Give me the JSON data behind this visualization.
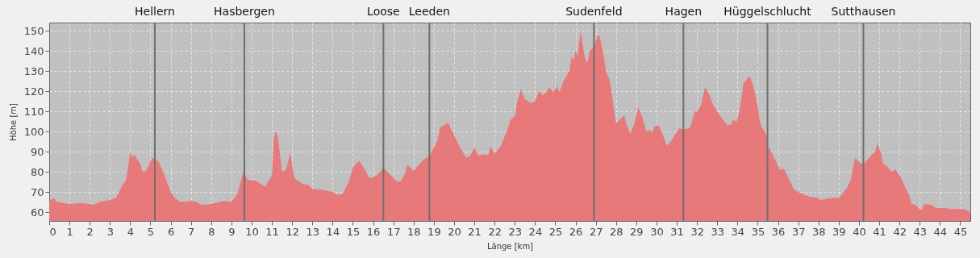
{
  "chart_data": {
    "type": "area",
    "xlabel": "Länge [km]",
    "ylabel": "Höhe [m]",
    "x": [
      0,
      0.2,
      0.4,
      1,
      1.5,
      2,
      2.2,
      2.5,
      3,
      3.3,
      3.6,
      3.8,
      4.0,
      4.1,
      4.2,
      4.5,
      4.6,
      4.8,
      5.0,
      5.1,
      5.4,
      5.7,
      6.0,
      6.2,
      6.5,
      7.0,
      7.3,
      7.5,
      8,
      8.6,
      9,
      9.3,
      9.6,
      9.8,
      10.2,
      10.7,
      10.8,
      11.0,
      11.1,
      11.2,
      11.3,
      11.5,
      11.7,
      11.9,
      12.1,
      12.5,
      12.8,
      13.0,
      13.5,
      14.0,
      14.2,
      14.5,
      14.8,
      15.0,
      15.3,
      15.6,
      15.8,
      16.0,
      16.2,
      16.4,
      16.5,
      16.6,
      16.9,
      17.2,
      17.4,
      17.6,
      17.7,
      18.0,
      18.3,
      18.5,
      18.8,
      19.0,
      19.2,
      19.3,
      19.5,
      19.7,
      20.0,
      20.3,
      20.6,
      20.8,
      21.0,
      21.2,
      21.4,
      21.7,
      21.8,
      22.0,
      22.3,
      22.6,
      22.8,
      23.0,
      23.1,
      23.3,
      23.5,
      23.8,
      24.0,
      24.2,
      24.4,
      24.6,
      24.7,
      24.9,
      25.1,
      25.2,
      25.4,
      25.7,
      25.8,
      25.9,
      26.0,
      26.1,
      26.25,
      26.4,
      26.5,
      26.6,
      26.7,
      26.9,
      27.1,
      27.2,
      27.4,
      27.5,
      27.7,
      28.0,
      28.2,
      28.4,
      28.5,
      28.7,
      28.9,
      29.1,
      29.3,
      29.5,
      29.7,
      29.8,
      29.9,
      30.1,
      30.3,
      30.5,
      30.7,
      30.9,
      31.1,
      31.3,
      31.6,
      31.7,
      31.9,
      32.0,
      32.2,
      32.4,
      32.6,
      32.8,
      33.0,
      33.3,
      33.5,
      33.7,
      33.8,
      33.95,
      34.1,
      34.2,
      34.3,
      34.6,
      34.8,
      35.0,
      35.1,
      35.2,
      35.4,
      35.5,
      35.6,
      35.9,
      36.1,
      36.3,
      36.6,
      36.8,
      37.0,
      37.3,
      37.6,
      38.0,
      38.1,
      38.6,
      39.0,
      39.1,
      39.4,
      39.6,
      39.8,
      40.0,
      40.1,
      40.3,
      40.6,
      40.8,
      40.9,
      41.1,
      41.2,
      41.4,
      41.6,
      41.8,
      42.0,
      42.3,
      42.5,
      42.6,
      42.8,
      43.0,
      43.1,
      43.2,
      43.6,
      43.8,
      44.3,
      44.5,
      45.2,
      45.5
    ],
    "series": [
      {
        "color": "#e8797a",
        "values": [
          65,
          67,
          65,
          64,
          64.5,
          64,
          63.5,
          65,
          66,
          67,
          73,
          76,
          89.5,
          87,
          88.5,
          84,
          80,
          80.5,
          85,
          87,
          85,
          78,
          70,
          67,
          65,
          65.5,
          65,
          63.5,
          64,
          65.5,
          65,
          69,
          80.5,
          76,
          75.5,
          72.5,
          75,
          78,
          97,
          100,
          97,
          80,
          81,
          89.5,
          77,
          74,
          73.5,
          71.5,
          71,
          70,
          68.5,
          69,
          75,
          82,
          85.5,
          81,
          77,
          77,
          78.5,
          80.5,
          82.5,
          81,
          78,
          75,
          75.5,
          80,
          83.5,
          80.5,
          84,
          86,
          88,
          92,
          96,
          102,
          103,
          104.5,
          98,
          92,
          87,
          88,
          92,
          88,
          88.5,
          88.5,
          92.5,
          89,
          92.5,
          100,
          106,
          107.5,
          114,
          121,
          116,
          114,
          115,
          120,
          118,
          120,
          122,
          119.5,
          122.5,
          119.5,
          125,
          130,
          137,
          135.5,
          140,
          137.5,
          150,
          140,
          135,
          134.5,
          140,
          142,
          148,
          147,
          137,
          130,
          125,
          104,
          106,
          108,
          104,
          99,
          103.5,
          112,
          107,
          100,
          100.5,
          99.5,
          102.5,
          103,
          98.5,
          93,
          95,
          98,
          101.5,
          101,
          101.5,
          103,
          110.5,
          109.5,
          113,
          122,
          118.5,
          113,
          110,
          105.5,
          103,
          103.5,
          106,
          104.5,
          110,
          117,
          124,
          127.5,
          122,
          112,
          105,
          102,
          99,
          92,
          91.5,
          85,
          81,
          81.5,
          75,
          71,
          70,
          68.5,
          67.5,
          67,
          66,
          67,
          67,
          68,
          72,
          76,
          87,
          85,
          84,
          84.5,
          88,
          90,
          94,
          89,
          84,
          82.5,
          80,
          81,
          78.5,
          72,
          68,
          64,
          63.5,
          61.5,
          61,
          64,
          63.5,
          62,
          62,
          61.5,
          61.5,
          60
        ]
      }
    ],
    "xlim": [
      0,
      45.5
    ],
    "ylim": [
      55.6,
      154
    ],
    "xticks": [
      0,
      1,
      2,
      3,
      4,
      5,
      6,
      7,
      8,
      9,
      10,
      11,
      12,
      13,
      14,
      15,
      16,
      17,
      18,
      19,
      20,
      21,
      22,
      23,
      24,
      25,
      26,
      27,
      28,
      29,
      30,
      31,
      32,
      33,
      34,
      35,
      36,
      37,
      38,
      39,
      40,
      41,
      42,
      43,
      44,
      45
    ],
    "yticks": [
      60,
      70,
      80,
      90,
      100,
      110,
      120,
      130,
      140,
      150
    ],
    "grid": true,
    "ref_lines": [
      {
        "axis": "x",
        "value": 5.22,
        "label": "Hellern",
        "color": "#6e6e6e"
      },
      {
        "axis": "x",
        "value": 9.64,
        "label": "Hasbergen",
        "color": "#6e6e6e"
      },
      {
        "axis": "x",
        "value": 16.51,
        "label": "Loose",
        "color": "#6e6e6e"
      },
      {
        "axis": "x",
        "value": 18.78,
        "label": "Leeden",
        "color": "#6e6e6e"
      },
      {
        "axis": "x",
        "value": 26.91,
        "label": "Sudenfeld",
        "color": "#6e6e6e"
      },
      {
        "axis": "x",
        "value": 31.33,
        "label": "Hagen",
        "color": "#6e6e6e"
      },
      {
        "axis": "x",
        "value": 35.48,
        "label": "Hüggelschlucht",
        "color": "#6e6e6e"
      },
      {
        "axis": "x",
        "value": 40.22,
        "label": "Sutthausen",
        "color": "#6e6e6e"
      }
    ]
  }
}
